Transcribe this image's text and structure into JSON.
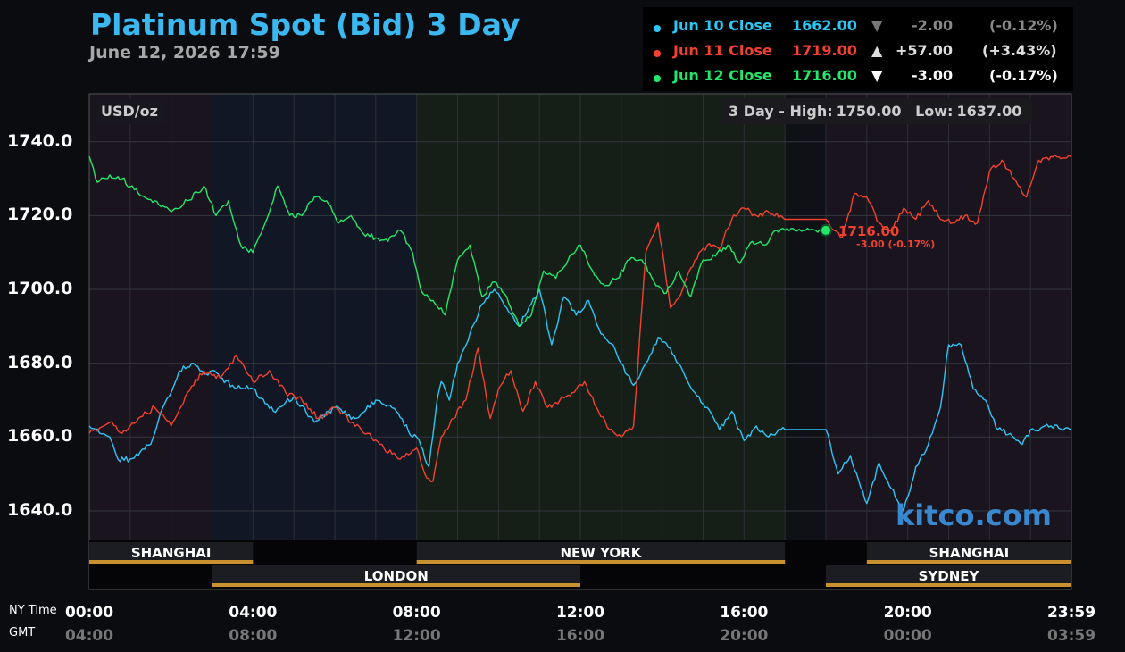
{
  "header": {
    "title": "Platinum Spot (Bid) 3 Day",
    "subtitle": "June 12, 2026 17:59"
  },
  "legend": [
    {
      "label": "Jun 10 Close",
      "price": "1662.00",
      "arrow": "▼",
      "change": "-2.00",
      "pct": "(-0.12%)",
      "color": "#2ec6f5",
      "arrow_color": "#777777",
      "change_color": "#888888"
    },
    {
      "label": "Jun 11 Close",
      "price": "1719.00",
      "arrow": "▲",
      "change": "+57.00",
      "pct": "(+3.43%)",
      "color": "#f2412f",
      "arrow_color": "#dddddd",
      "change_color": "#dddddd"
    },
    {
      "label": "Jun 12 Close",
      "price": "1716.00",
      "arrow": "▼",
      "change": "-3.00",
      "pct": "(-0.17%)",
      "color": "#23e66a",
      "arrow_color": "#ffffff",
      "change_color": "#ffffff"
    }
  ],
  "unit": "USD/oz",
  "high_low": {
    "high_label": "3 Day - High:",
    "high": "1750.00",
    "low_label": "Low:",
    "low": "1637.00"
  },
  "axis_captions": {
    "ny": "NY Time",
    "gmt": "GMT"
  },
  "watermark": "kitco.com",
  "current": {
    "price": "1716.00",
    "change": "-3.00 (-0.17%)"
  },
  "sessions": [
    {
      "name": "SHANGHAI",
      "start": 0,
      "end": 4,
      "row": 1
    },
    {
      "name": "NEW YORK",
      "start": 8,
      "end": 17,
      "row": 1
    },
    {
      "name": "SHANGHAI",
      "start": 19,
      "end": 24,
      "row": 1
    },
    {
      "name": "LONDON",
      "start": 3,
      "end": 12,
      "row": 2
    },
    {
      "name": "SYDNEY",
      "start": 18,
      "end": 24,
      "row": 2
    }
  ],
  "chart_data": {
    "type": "line",
    "title": "Platinum Spot (Bid) 3 Day",
    "ylabel": "USD/oz",
    "xlabel": "",
    "ylim": [
      1632,
      1753
    ],
    "xlim": [
      0,
      24
    ],
    "y_ticks": [
      "1640.0",
      "1660.0",
      "1680.0",
      "1700.0",
      "1720.0",
      "1740.0"
    ],
    "x_ticks_ny": [
      "00:00",
      "04:00",
      "08:00",
      "12:00",
      "16:00",
      "20:00",
      "23:59"
    ],
    "x_ticks_gmt": [
      "04:00",
      "08:00",
      "12:00",
      "16:00",
      "20:00",
      "00:00",
      "03:59"
    ],
    "x_tick_hours": [
      0,
      4,
      8,
      12,
      16,
      20,
      24
    ],
    "series": [
      {
        "name": "Jun 10",
        "color": "#2ec6f5",
        "x": [
          0,
          0.5,
          0.7,
          1,
          1.5,
          1.8,
          2,
          2.2,
          2.5,
          2.8,
          3,
          3.2,
          3.5,
          4,
          4.5,
          5,
          5.5,
          6,
          6.5,
          7,
          7.5,
          7.9,
          8,
          8.3,
          8.5,
          8.6,
          8.8,
          9,
          9.3,
          9.6,
          9.9,
          10.2,
          10.5,
          10.8,
          11,
          11.3,
          11.6,
          11.9,
          12.2,
          12.5,
          12.8,
          13,
          13.3,
          13.6,
          13.9,
          14.2,
          14.5,
          14.8,
          15.1,
          15.4,
          15.7,
          16,
          16.3,
          16.6,
          16.9,
          17,
          18,
          18.3,
          18.6,
          19,
          19.3,
          19.6,
          19.9,
          20.2,
          20.5,
          20.8,
          21,
          21.3,
          21.6,
          21.9,
          22.2,
          22.5,
          22.8,
          23,
          23.5,
          23.98
        ],
        "y": [
          1663,
          1660,
          1654,
          1654,
          1658,
          1668,
          1672,
          1678,
          1680,
          1677,
          1678,
          1676,
          1674,
          1673,
          1667,
          1671,
          1664,
          1668,
          1665,
          1670,
          1667,
          1660,
          1660,
          1652,
          1670,
          1675,
          1670,
          1680,
          1688,
          1696,
          1700,
          1695,
          1690,
          1696,
          1700,
          1685,
          1698,
          1693,
          1697,
          1688,
          1685,
          1680,
          1674,
          1680,
          1687,
          1684,
          1678,
          1672,
          1668,
          1662,
          1667,
          1659,
          1663,
          1660,
          1662,
          1662,
          1662,
          1650,
          1655,
          1642,
          1653,
          1646,
          1640,
          1652,
          1658,
          1668,
          1685,
          1685,
          1673,
          1670,
          1662,
          1661,
          1658,
          1662,
          1663,
          1662
        ]
      },
      {
        "name": "Jun 11",
        "color": "#f2412f",
        "x": [
          0,
          0.5,
          0.8,
          1.2,
          1.6,
          2,
          2.4,
          2.8,
          3.2,
          3.6,
          4,
          4.4,
          4.8,
          5.2,
          5.6,
          6,
          6.4,
          6.8,
          7.2,
          7.6,
          8,
          8.2,
          8.4,
          8.6,
          8.9,
          9.2,
          9.5,
          9.8,
          10,
          10.3,
          10.6,
          10.9,
          11.2,
          11.5,
          11.8,
          12.1,
          12.4,
          12.7,
          13,
          13.3,
          13.6,
          13.9,
          14.2,
          14.5,
          14.8,
          15.1,
          15.4,
          15.7,
          16,
          16.3,
          16.6,
          16.9,
          17,
          18,
          18.2,
          18.4,
          18.7,
          19,
          19.3,
          19.6,
          19.9,
          20.2,
          20.5,
          20.8,
          21.1,
          21.4,
          21.7,
          22,
          22.3,
          22.6,
          22.9,
          23.2,
          23.5,
          23.98
        ],
        "y": [
          1661,
          1664,
          1661,
          1665,
          1668,
          1663,
          1672,
          1678,
          1676,
          1682,
          1675,
          1678,
          1672,
          1670,
          1665,
          1668,
          1664,
          1661,
          1657,
          1654,
          1657,
          1650,
          1648,
          1660,
          1665,
          1670,
          1684,
          1665,
          1673,
          1678,
          1667,
          1675,
          1668,
          1670,
          1672,
          1675,
          1668,
          1662,
          1660,
          1663,
          1710,
          1718,
          1695,
          1700,
          1708,
          1712,
          1711,
          1719,
          1722,
          1720,
          1721,
          1720,
          1719,
          1719,
          1716,
          1714,
          1726,
          1725,
          1718,
          1716,
          1722,
          1719,
          1724,
          1719,
          1718,
          1720,
          1718,
          1732,
          1735,
          1730,
          1725,
          1735,
          1736,
          1736
        ]
      },
      {
        "name": "Jun 12",
        "color": "#23e66a",
        "x": [
          0,
          0.2,
          0.5,
          0.8,
          1.2,
          1.6,
          2,
          2.4,
          2.8,
          3.1,
          3.4,
          3.7,
          4,
          4.3,
          4.6,
          4.9,
          5.2,
          5.5,
          5.8,
          6.1,
          6.4,
          6.7,
          7,
          7.3,
          7.6,
          7.9,
          8.1,
          8.4,
          8.7,
          9,
          9.3,
          9.6,
          9.9,
          10.2,
          10.5,
          10.8,
          11.1,
          11.4,
          11.7,
          12,
          12.3,
          12.6,
          12.9,
          13.2,
          13.5,
          13.8,
          14.1,
          14.4,
          14.7,
          15,
          15.3,
          15.6,
          15.9,
          16.2,
          16.5,
          16.8,
          17,
          17.5,
          18
        ],
        "y": [
          1736,
          1729,
          1731,
          1730,
          1726,
          1724,
          1721,
          1724,
          1728,
          1720,
          1724,
          1712,
          1710,
          1718,
          1728,
          1720,
          1720,
          1725,
          1724,
          1718,
          1720,
          1715,
          1714,
          1713,
          1716,
          1710,
          1700,
          1697,
          1693,
          1708,
          1712,
          1698,
          1702,
          1698,
          1690,
          1693,
          1705,
          1703,
          1708,
          1712,
          1705,
          1701,
          1703,
          1708,
          1708,
          1702,
          1699,
          1705,
          1698,
          1708,
          1709,
          1712,
          1707,
          1713,
          1712,
          1716,
          1716,
          1716,
          1716
        ]
      }
    ]
  }
}
